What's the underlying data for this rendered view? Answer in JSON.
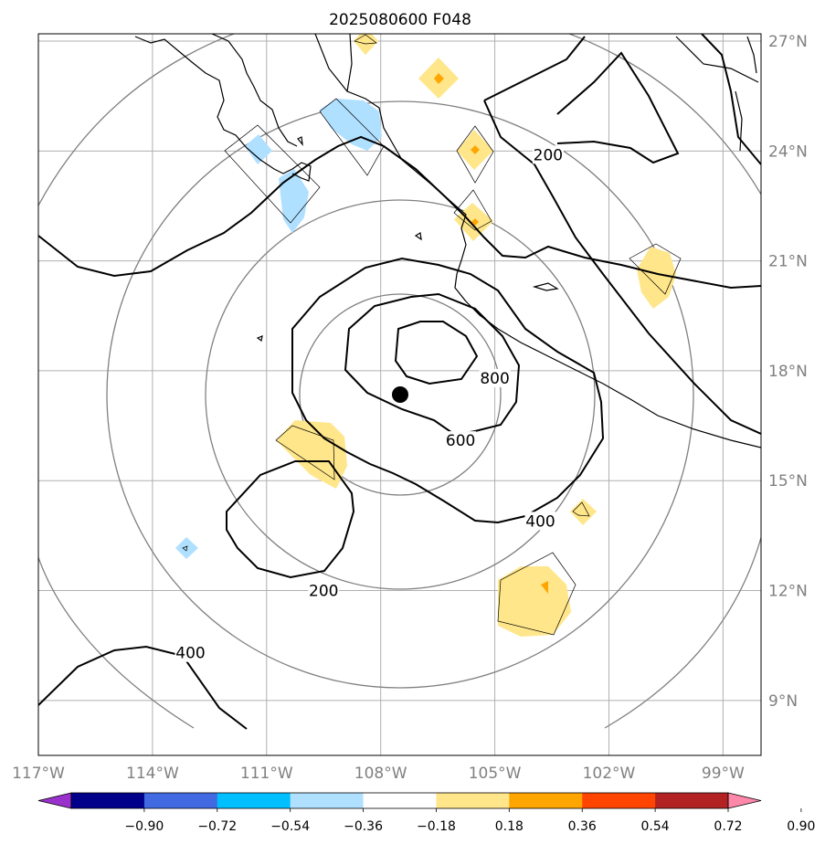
{
  "title": "2025080600 F048",
  "map": {
    "lon_range": [
      -117,
      -98
    ],
    "lat_range": [
      7.5,
      27.2
    ],
    "lon_ticks": [
      {
        "value": -117,
        "label": "117°W"
      },
      {
        "value": -114,
        "label": "114°W"
      },
      {
        "value": -111,
        "label": "111°W"
      },
      {
        "value": -108,
        "label": "108°W"
      },
      {
        "value": -105,
        "label": "105°W"
      },
      {
        "value": -102,
        "label": "102°W"
      },
      {
        "value": -99,
        "label": "99°W"
      }
    ],
    "lat_ticks": [
      {
        "value": 27,
        "label": "27°N"
      },
      {
        "value": 24,
        "label": "24°N"
      },
      {
        "value": 21,
        "label": "21°N"
      },
      {
        "value": 18,
        "label": "18°N"
      },
      {
        "value": 15,
        "label": "15°N"
      },
      {
        "value": 12,
        "label": "12°N"
      },
      {
        "value": 9,
        "label": "9°N"
      }
    ],
    "grid": true,
    "storm_center": {
      "lon": -107.0,
      "lat": 17.2
    },
    "range_rings": "concentric circles around storm center",
    "contour_labels": [
      {
        "text": "200",
        "lon": -103.6,
        "lat": 23.9
      },
      {
        "text": "800",
        "lon": -105.0,
        "lat": 17.8
      },
      {
        "text": "600",
        "lon": -105.9,
        "lat": 16.1
      },
      {
        "text": "400",
        "lon": -103.8,
        "lat": 13.9
      },
      {
        "text": "200",
        "lon": -109.5,
        "lat": 12.0
      },
      {
        "text": "400",
        "lon": -113.0,
        "lat": 10.3
      }
    ]
  },
  "colorbar": {
    "ticks": [
      "−0.90",
      "−0.72",
      "−0.54",
      "−0.36",
      "−0.18",
      "0.18",
      "0.36",
      "0.54",
      "0.72",
      "0.90"
    ],
    "colors": [
      "#9932cc",
      "#00008b",
      "#4169e1",
      "#00bfff",
      "#b0e0ff",
      "#ffffff",
      "#ffe68a",
      "#ffa500",
      "#ff4500",
      "#b22222",
      "#ff88aa"
    ]
  }
}
